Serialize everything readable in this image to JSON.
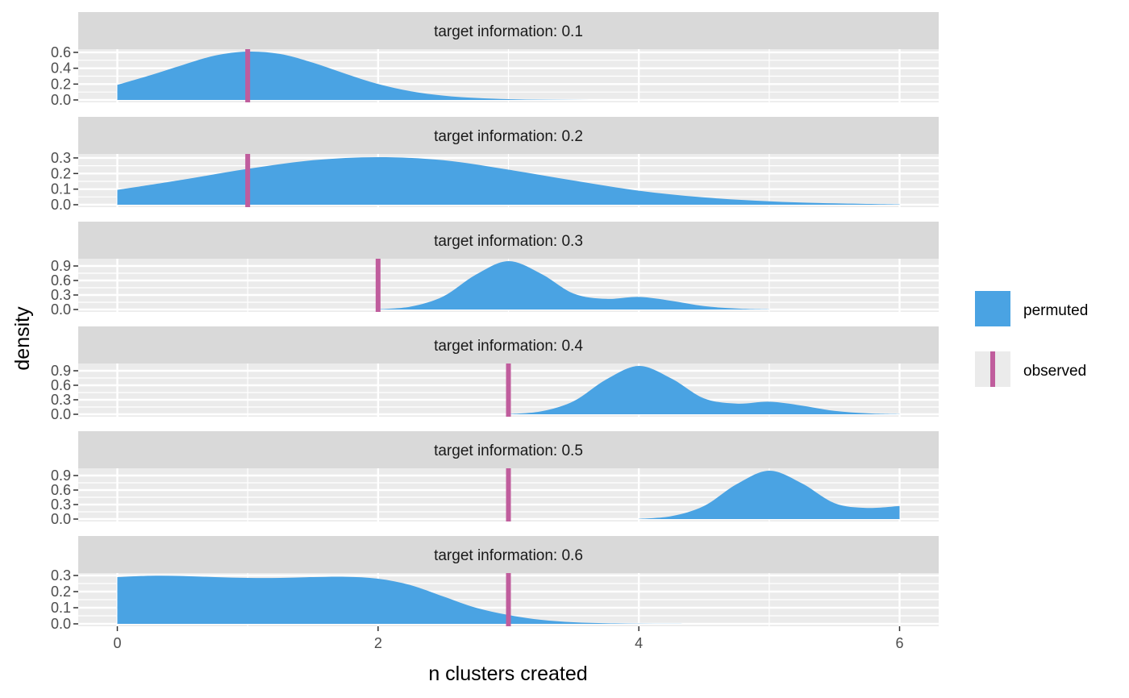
{
  "chart_data": {
    "type": "area",
    "xlabel": "n clusters created",
    "ylabel": "density",
    "xlim": [
      -0.3,
      6.3
    ],
    "x_ticks": [
      0,
      2,
      4,
      6
    ],
    "legend": {
      "placement": "right",
      "entries": [
        {
          "label": "permuted",
          "kind": "fill",
          "color": "#4AA3E3"
        },
        {
          "label": "observed",
          "kind": "vline",
          "color": "#C05D9D"
        }
      ]
    },
    "colors": {
      "permuted": "#4AA3E3",
      "observed": "#C05D9D",
      "panel_bg": "#EBEBEB",
      "strip_bg": "#D9D9D9",
      "grid": "#FFFFFF"
    },
    "panels": [
      {
        "strip": "target information: 0.1",
        "observed": 1,
        "ylim": [
          0,
          0.61
        ],
        "y_ticks": [
          0.0,
          0.2,
          0.4,
          0.6
        ],
        "y_tick_labels": [
          "0.0",
          "0.2",
          "0.4",
          "0.6"
        ],
        "density": {
          "x": [
            0,
            0.25,
            0.5,
            0.75,
            1.0,
            1.25,
            1.5,
            1.75,
            2.0,
            2.25,
            2.5,
            2.75,
            3.0,
            3.25,
            3.5,
            3.75,
            4.0
          ],
          "y": [
            0.19,
            0.31,
            0.44,
            0.56,
            0.61,
            0.58,
            0.47,
            0.33,
            0.2,
            0.11,
            0.055,
            0.025,
            0.01,
            0.004,
            0.001,
            0,
            0
          ]
        }
      },
      {
        "strip": "target information: 0.2",
        "observed": 1,
        "ylim": [
          0,
          0.31
        ],
        "y_ticks": [
          0.0,
          0.1,
          0.2,
          0.3
        ],
        "y_tick_labels": [
          "0.0",
          "0.1",
          "0.2",
          "0.3"
        ],
        "density": {
          "x": [
            0,
            0.5,
            1.0,
            1.5,
            2.0,
            2.5,
            3.0,
            3.5,
            4.0,
            4.5,
            5.0,
            5.5,
            6.0
          ],
          "y": [
            0.095,
            0.16,
            0.23,
            0.285,
            0.305,
            0.285,
            0.225,
            0.155,
            0.09,
            0.047,
            0.022,
            0.009,
            0.002
          ]
        }
      },
      {
        "strip": "target information: 0.3",
        "observed": 2,
        "ylim": [
          0,
          1.0
        ],
        "y_ticks": [
          0.0,
          0.3,
          0.6,
          0.9
        ],
        "y_tick_labels": [
          "0.0",
          "0.3",
          "0.6",
          "0.9"
        ],
        "density": {
          "x": [
            2.0,
            2.25,
            2.5,
            2.75,
            3.0,
            3.25,
            3.5,
            3.75,
            4.0,
            4.25,
            4.5,
            4.75,
            5.0
          ],
          "y": [
            0.005,
            0.06,
            0.27,
            0.72,
            1.0,
            0.74,
            0.33,
            0.22,
            0.26,
            0.18,
            0.07,
            0.02,
            0.003
          ]
        }
      },
      {
        "strip": "target information: 0.4",
        "observed": 3,
        "ylim": [
          0,
          1.0
        ],
        "y_ticks": [
          0.0,
          0.3,
          0.6,
          0.9
        ],
        "y_tick_labels": [
          "0.0",
          "0.3",
          "0.6",
          "0.9"
        ],
        "density": {
          "x": [
            3.0,
            3.25,
            3.5,
            3.75,
            4.0,
            4.25,
            4.5,
            4.75,
            5.0,
            5.25,
            5.5,
            5.75,
            6.0
          ],
          "y": [
            0.005,
            0.06,
            0.27,
            0.72,
            1.0,
            0.74,
            0.33,
            0.22,
            0.26,
            0.18,
            0.07,
            0.02,
            0.003
          ]
        }
      },
      {
        "strip": "target information: 0.5",
        "observed": 3,
        "ylim": [
          0,
          1.0
        ],
        "y_ticks": [
          0.0,
          0.3,
          0.6,
          0.9
        ],
        "y_tick_labels": [
          "0.0",
          "0.3",
          "0.6",
          "0.9"
        ],
        "density": {
          "x": [
            4.0,
            4.25,
            4.5,
            4.75,
            5.0,
            5.25,
            5.5,
            5.75,
            6.0
          ],
          "y": [
            0.005,
            0.06,
            0.27,
            0.72,
            1.0,
            0.74,
            0.33,
            0.23,
            0.27
          ]
        }
      },
      {
        "strip": "target information: 0.6",
        "observed": 3,
        "ylim": [
          0,
          0.3
        ],
        "y_ticks": [
          0.0,
          0.1,
          0.2,
          0.3
        ],
        "y_tick_labels": [
          "0.0",
          "0.1",
          "0.2",
          "0.3"
        ],
        "density": {
          "x": [
            0,
            0.25,
            0.5,
            0.75,
            1.0,
            1.25,
            1.5,
            1.75,
            2.0,
            2.25,
            2.5,
            2.75,
            3.0,
            3.25,
            3.5,
            3.75,
            4.0,
            4.25,
            4.5
          ],
          "y": [
            0.29,
            0.298,
            0.297,
            0.29,
            0.285,
            0.285,
            0.29,
            0.292,
            0.28,
            0.24,
            0.17,
            0.1,
            0.055,
            0.025,
            0.01,
            0.004,
            0.001,
            0.0003,
            0
          ]
        }
      }
    ]
  }
}
